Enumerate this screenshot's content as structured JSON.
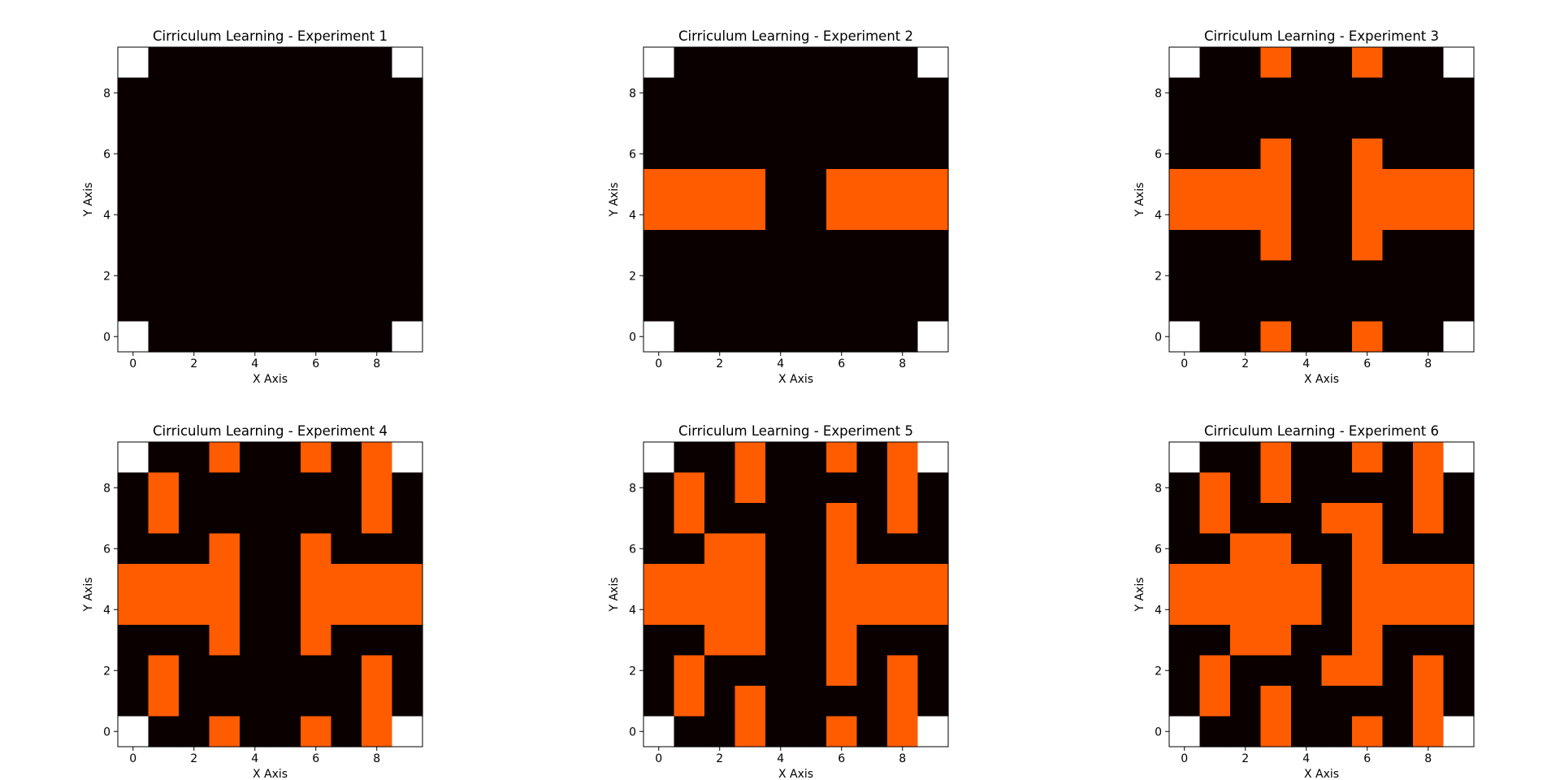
{
  "figure": {
    "background": "#ffffff"
  },
  "colors": {
    "0": "#0b0000",
    "1": "#ff5c00",
    "2": "#ffffff"
  },
  "chart_data": [
    {
      "type": "heatmap",
      "title": "Cirriculum Learning - Experiment 1",
      "xlabel": "X Axis",
      "ylabel": "Y Axis",
      "xticks": [
        0,
        2,
        4,
        6,
        8
      ],
      "yticks": [
        0,
        2,
        4,
        6,
        8
      ],
      "xlim": [
        -0.5,
        9.5
      ],
      "ylim": [
        9.5,
        -0.5
      ],
      "grid": false,
      "colormap": "hot",
      "values": [
        [
          2,
          0,
          0,
          0,
          0,
          0,
          0,
          0,
          0,
          2
        ],
        [
          0,
          0,
          0,
          0,
          0,
          0,
          0,
          0,
          0,
          0
        ],
        [
          0,
          0,
          0,
          0,
          0,
          0,
          0,
          0,
          0,
          0
        ],
        [
          0,
          0,
          0,
          0,
          0,
          0,
          0,
          0,
          0,
          0
        ],
        [
          0,
          0,
          0,
          0,
          0,
          0,
          0,
          0,
          0,
          0
        ],
        [
          0,
          0,
          0,
          0,
          0,
          0,
          0,
          0,
          0,
          0
        ],
        [
          0,
          0,
          0,
          0,
          0,
          0,
          0,
          0,
          0,
          0
        ],
        [
          0,
          0,
          0,
          0,
          0,
          0,
          0,
          0,
          0,
          0
        ],
        [
          0,
          0,
          0,
          0,
          0,
          0,
          0,
          0,
          0,
          0
        ],
        [
          2,
          0,
          0,
          0,
          0,
          0,
          0,
          0,
          0,
          2
        ]
      ]
    },
    {
      "type": "heatmap",
      "title": "Cirriculum Learning - Experiment 2",
      "xlabel": "X Axis",
      "ylabel": "Y Axis",
      "xticks": [
        0,
        2,
        4,
        6,
        8
      ],
      "yticks": [
        0,
        2,
        4,
        6,
        8
      ],
      "xlim": [
        -0.5,
        9.5
      ],
      "ylim": [
        9.5,
        -0.5
      ],
      "grid": false,
      "colormap": "hot",
      "values": [
        [
          2,
          0,
          0,
          0,
          0,
          0,
          0,
          0,
          0,
          2
        ],
        [
          0,
          0,
          0,
          0,
          0,
          0,
          0,
          0,
          0,
          0
        ],
        [
          0,
          0,
          0,
          0,
          0,
          0,
          0,
          0,
          0,
          0
        ],
        [
          0,
          0,
          0,
          0,
          0,
          0,
          0,
          0,
          0,
          0
        ],
        [
          1,
          1,
          1,
          1,
          0,
          0,
          1,
          1,
          1,
          1
        ],
        [
          1,
          1,
          1,
          1,
          0,
          0,
          1,
          1,
          1,
          1
        ],
        [
          0,
          0,
          0,
          0,
          0,
          0,
          0,
          0,
          0,
          0
        ],
        [
          0,
          0,
          0,
          0,
          0,
          0,
          0,
          0,
          0,
          0
        ],
        [
          0,
          0,
          0,
          0,
          0,
          0,
          0,
          0,
          0,
          0
        ],
        [
          2,
          0,
          0,
          0,
          0,
          0,
          0,
          0,
          0,
          2
        ]
      ]
    },
    {
      "type": "heatmap",
      "title": "Cirriculum Learning - Experiment 3",
      "xlabel": "X Axis",
      "ylabel": "Y Axis",
      "xticks": [
        0,
        2,
        4,
        6,
        8
      ],
      "yticks": [
        0,
        2,
        4,
        6,
        8
      ],
      "xlim": [
        -0.5,
        9.5
      ],
      "ylim": [
        9.5,
        -0.5
      ],
      "grid": false,
      "colormap": "hot",
      "values": [
        [
          2,
          0,
          0,
          1,
          0,
          0,
          1,
          0,
          0,
          2
        ],
        [
          0,
          0,
          0,
          0,
          0,
          0,
          0,
          0,
          0,
          0
        ],
        [
          0,
          0,
          0,
          0,
          0,
          0,
          0,
          0,
          0,
          0
        ],
        [
          0,
          0,
          0,
          1,
          0,
          0,
          1,
          0,
          0,
          0
        ],
        [
          1,
          1,
          1,
          1,
          0,
          0,
          1,
          1,
          1,
          1
        ],
        [
          1,
          1,
          1,
          1,
          0,
          0,
          1,
          1,
          1,
          1
        ],
        [
          0,
          0,
          0,
          1,
          0,
          0,
          1,
          0,
          0,
          0
        ],
        [
          0,
          0,
          0,
          0,
          0,
          0,
          0,
          0,
          0,
          0
        ],
        [
          0,
          0,
          0,
          0,
          0,
          0,
          0,
          0,
          0,
          0
        ],
        [
          2,
          0,
          0,
          1,
          0,
          0,
          1,
          0,
          0,
          2
        ]
      ]
    },
    {
      "type": "heatmap",
      "title": "Cirriculum Learning - Experiment 4",
      "xlabel": "X Axis",
      "ylabel": "Y Axis",
      "xticks": [
        0,
        2,
        4,
        6,
        8
      ],
      "yticks": [
        0,
        2,
        4,
        6,
        8
      ],
      "xlim": [
        -0.5,
        9.5
      ],
      "ylim": [
        9.5,
        -0.5
      ],
      "grid": false,
      "colormap": "hot",
      "values": [
        [
          2,
          0,
          0,
          1,
          0,
          0,
          1,
          0,
          1,
          2
        ],
        [
          0,
          1,
          0,
          0,
          0,
          0,
          0,
          0,
          1,
          0
        ],
        [
          0,
          1,
          0,
          0,
          0,
          0,
          0,
          0,
          1,
          0
        ],
        [
          0,
          0,
          0,
          1,
          0,
          0,
          1,
          0,
          0,
          0
        ],
        [
          1,
          1,
          1,
          1,
          0,
          0,
          1,
          1,
          1,
          1
        ],
        [
          1,
          1,
          1,
          1,
          0,
          0,
          1,
          1,
          1,
          1
        ],
        [
          0,
          0,
          0,
          1,
          0,
          0,
          1,
          0,
          0,
          0
        ],
        [
          0,
          1,
          0,
          0,
          0,
          0,
          0,
          0,
          1,
          0
        ],
        [
          0,
          1,
          0,
          0,
          0,
          0,
          0,
          0,
          1,
          0
        ],
        [
          2,
          0,
          0,
          1,
          0,
          0,
          1,
          0,
          1,
          2
        ]
      ]
    },
    {
      "type": "heatmap",
      "title": "Cirriculum Learning - Experiment 5",
      "xlabel": "X Axis",
      "ylabel": "Y Axis",
      "xticks": [
        0,
        2,
        4,
        6,
        8
      ],
      "yticks": [
        0,
        2,
        4,
        6,
        8
      ],
      "xlim": [
        -0.5,
        9.5
      ],
      "ylim": [
        9.5,
        -0.5
      ],
      "grid": false,
      "colormap": "hot",
      "values": [
        [
          2,
          0,
          0,
          1,
          0,
          0,
          1,
          0,
          1,
          2
        ],
        [
          0,
          1,
          0,
          1,
          0,
          0,
          0,
          0,
          1,
          0
        ],
        [
          0,
          1,
          0,
          0,
          0,
          0,
          1,
          0,
          1,
          0
        ],
        [
          0,
          0,
          1,
          1,
          0,
          0,
          1,
          0,
          0,
          0
        ],
        [
          1,
          1,
          1,
          1,
          0,
          0,
          1,
          1,
          1,
          1
        ],
        [
          1,
          1,
          1,
          1,
          0,
          0,
          1,
          1,
          1,
          1
        ],
        [
          0,
          0,
          1,
          1,
          0,
          0,
          1,
          0,
          0,
          0
        ],
        [
          0,
          1,
          0,
          0,
          0,
          0,
          1,
          0,
          1,
          0
        ],
        [
          0,
          1,
          0,
          1,
          0,
          0,
          0,
          0,
          1,
          0
        ],
        [
          2,
          0,
          0,
          1,
          0,
          0,
          1,
          0,
          1,
          2
        ]
      ]
    },
    {
      "type": "heatmap",
      "title": "Cirriculum Learning - Experiment 6",
      "xlabel": "X Axis",
      "ylabel": "Y Axis",
      "xticks": [
        0,
        2,
        4,
        6,
        8
      ],
      "yticks": [
        0,
        2,
        4,
        6,
        8
      ],
      "xlim": [
        -0.5,
        9.5
      ],
      "ylim": [
        9.5,
        -0.5
      ],
      "grid": false,
      "colormap": "hot",
      "values": [
        [
          2,
          0,
          0,
          1,
          0,
          0,
          1,
          0,
          1,
          2
        ],
        [
          0,
          1,
          0,
          1,
          0,
          0,
          0,
          0,
          1,
          0
        ],
        [
          0,
          1,
          0,
          0,
          0,
          1,
          1,
          0,
          1,
          0
        ],
        [
          0,
          0,
          1,
          1,
          0,
          0,
          1,
          0,
          0,
          0
        ],
        [
          1,
          1,
          1,
          1,
          1,
          0,
          1,
          1,
          1,
          1
        ],
        [
          1,
          1,
          1,
          1,
          1,
          0,
          1,
          1,
          1,
          1
        ],
        [
          0,
          0,
          1,
          1,
          0,
          0,
          1,
          0,
          0,
          0
        ],
        [
          0,
          1,
          0,
          0,
          0,
          1,
          1,
          0,
          1,
          0
        ],
        [
          0,
          1,
          0,
          1,
          0,
          0,
          0,
          0,
          1,
          0
        ],
        [
          2,
          0,
          0,
          1,
          0,
          0,
          1,
          0,
          1,
          2
        ]
      ]
    }
  ]
}
